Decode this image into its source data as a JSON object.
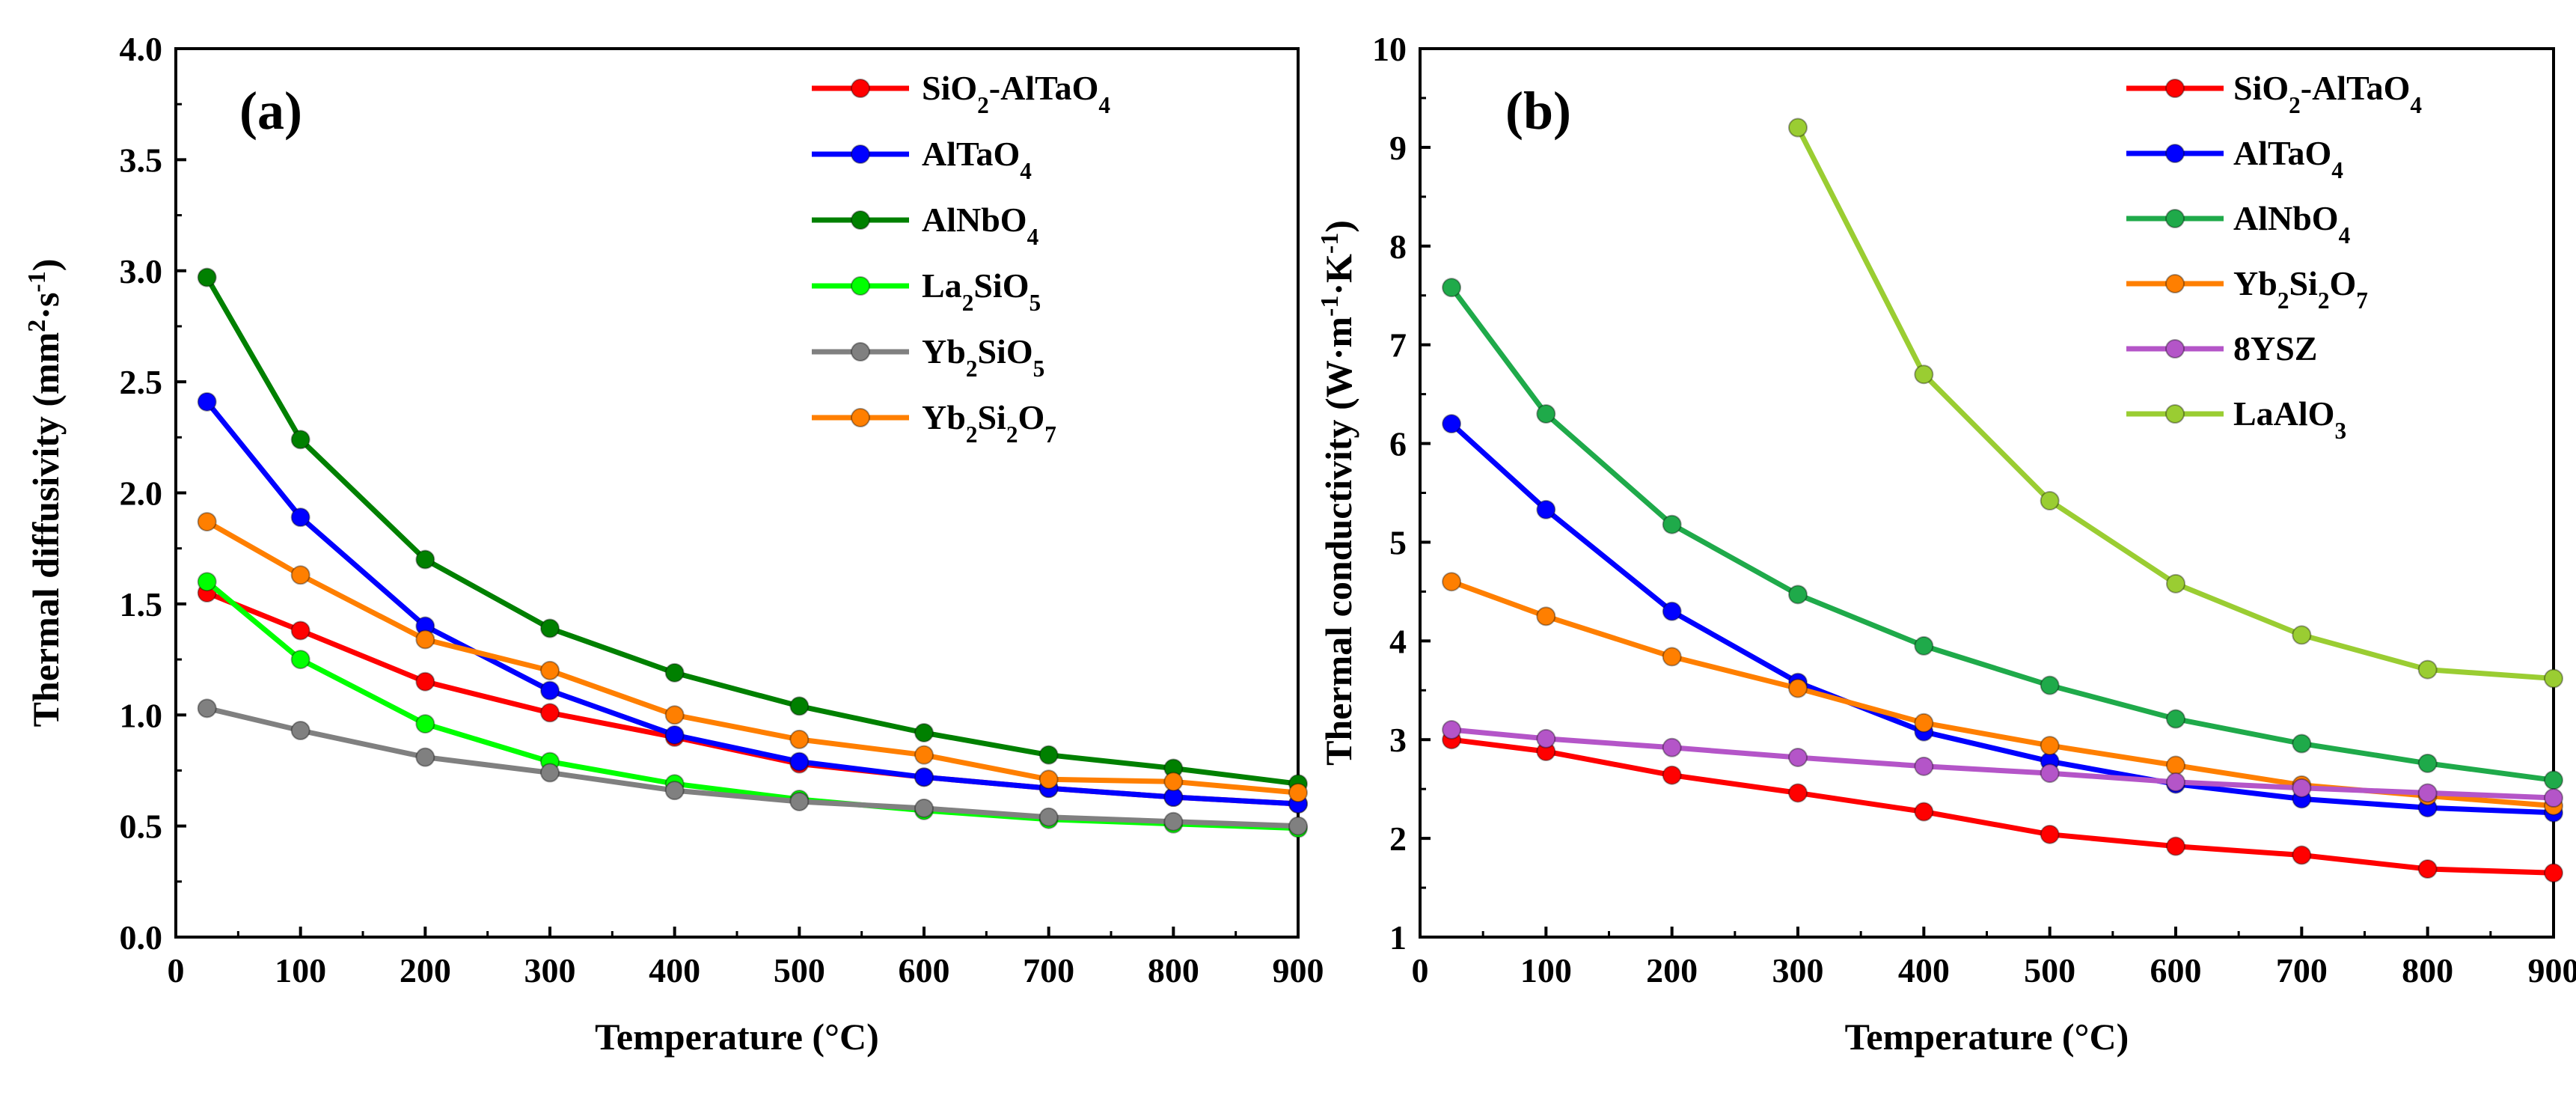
{
  "chart_data": [
    {
      "type": "line",
      "panel_label": "(a)",
      "xlabel": "Temperature (°C)",
      "ylabel_parts": [
        {
          "t": "Thermal diffusivity (mm"
        },
        {
          "t": "2",
          "sup": true
        },
        {
          "t": "·s"
        },
        {
          "t": "-1",
          "sup": true
        },
        {
          "t": ")"
        }
      ],
      "xlim": [
        0,
        900
      ],
      "ylim": [
        0.0,
        4.0
      ],
      "xticks": [
        0,
        100,
        200,
        300,
        400,
        500,
        600,
        700,
        800,
        900
      ],
      "xtick_labels": [
        "0",
        "100",
        "200",
        "300",
        "400",
        "500",
        "600",
        "700",
        "800",
        "900"
      ],
      "yticks": [
        0.0,
        0.5,
        1.0,
        1.5,
        2.0,
        2.5,
        3.0,
        3.5,
        4.0
      ],
      "ytick_labels": [
        "0.0",
        "0.5",
        "1.0",
        "1.5",
        "2.0",
        "2.5",
        "3.0",
        "3.5",
        "4.0"
      ],
      "legend_position": "top-right",
      "x": [
        25,
        100,
        200,
        300,
        400,
        500,
        600,
        700,
        800,
        900
      ],
      "series": [
        {
          "name": "SiO2-AlTaO4",
          "color": "#ff0000",
          "label_parts": [
            {
              "t": "SiO"
            },
            {
              "t": "2",
              "sub": true
            },
            {
              "t": "-AlTaO"
            },
            {
              "t": "4",
              "sub": true
            }
          ],
          "values": [
            1.55,
            1.38,
            1.15,
            1.01,
            0.9,
            0.78,
            0.72,
            0.67,
            0.63,
            0.6
          ]
        },
        {
          "name": "AlTaO4",
          "color": "#0000ff",
          "label_parts": [
            {
              "t": "AlTaO"
            },
            {
              "t": "4",
              "sub": true
            }
          ],
          "values": [
            2.41,
            1.89,
            1.4,
            1.11,
            0.91,
            0.79,
            0.72,
            0.67,
            0.63,
            0.6
          ]
        },
        {
          "name": "AlNbO4",
          "color": "#008000",
          "label_parts": [
            {
              "t": "AlNbO"
            },
            {
              "t": "4",
              "sub": true
            }
          ],
          "values": [
            2.97,
            2.24,
            1.7,
            1.39,
            1.19,
            1.04,
            0.92,
            0.82,
            0.76,
            0.69
          ]
        },
        {
          "name": "La2SiO5",
          "color": "#00ff00",
          "label_parts": [
            {
              "t": "La"
            },
            {
              "t": "2",
              "sub": true
            },
            {
              "t": "SiO"
            },
            {
              "t": "5",
              "sub": true
            }
          ],
          "values": [
            1.6,
            1.25,
            0.96,
            0.79,
            0.69,
            0.62,
            0.57,
            0.53,
            0.51,
            0.49
          ]
        },
        {
          "name": "Yb2SiO5",
          "color": "#808080",
          "label_parts": [
            {
              "t": "Yb"
            },
            {
              "t": "2",
              "sub": true
            },
            {
              "t": "SiO"
            },
            {
              "t": "5",
              "sub": true
            }
          ],
          "values": [
            1.03,
            0.93,
            0.81,
            0.74,
            0.66,
            0.61,
            0.58,
            0.54,
            0.52,
            0.5
          ]
        },
        {
          "name": "Yb2Si2O7",
          "color": "#ff7f00",
          "label_parts": [
            {
              "t": "Yb"
            },
            {
              "t": "2",
              "sub": true
            },
            {
              "t": "Si"
            },
            {
              "t": "2",
              "sub": true
            },
            {
              "t": "O"
            },
            {
              "t": "7",
              "sub": true
            }
          ],
          "values": [
            1.87,
            1.63,
            1.34,
            1.2,
            1.0,
            0.89,
            0.82,
            0.71,
            0.7,
            0.65
          ]
        }
      ]
    },
    {
      "type": "line",
      "panel_label": "(b)",
      "xlabel": "Temperature (°C)",
      "ylabel_parts": [
        {
          "t": "Thermal conductivity (W·m"
        },
        {
          "t": "-1",
          "sup": true
        },
        {
          "t": "·K"
        },
        {
          "t": "-1",
          "sup": true
        },
        {
          "t": ")"
        }
      ],
      "xlim": [
        0,
        900
      ],
      "ylim": [
        1,
        10
      ],
      "xticks": [
        0,
        100,
        200,
        300,
        400,
        500,
        600,
        700,
        800,
        900
      ],
      "xtick_labels": [
        "0",
        "100",
        "200",
        "300",
        "400",
        "500",
        "600",
        "700",
        "800",
        "900"
      ],
      "yticks": [
        1,
        2,
        3,
        4,
        5,
        6,
        7,
        8,
        9,
        10
      ],
      "ytick_labels": [
        "1",
        "2",
        "3",
        "4",
        "5",
        "6",
        "7",
        "8",
        "9",
        "10"
      ],
      "legend_position": "top-right",
      "x": [
        25,
        100,
        200,
        300,
        400,
        500,
        600,
        700,
        800,
        900
      ],
      "series": [
        {
          "name": "SiO2-AlTaO4",
          "color": "#ff0000",
          "label_parts": [
            {
              "t": "SiO"
            },
            {
              "t": "2",
              "sub": true
            },
            {
              "t": "-AlTaO"
            },
            {
              "t": "4",
              "sub": true
            }
          ],
          "values": [
            3.0,
            2.88,
            2.64,
            2.46,
            2.27,
            2.04,
            1.92,
            1.83,
            1.69,
            1.65
          ]
        },
        {
          "name": "AlTaO4",
          "color": "#0000ff",
          "label_parts": [
            {
              "t": "AlTaO"
            },
            {
              "t": "4",
              "sub": true
            }
          ],
          "values": [
            6.2,
            5.33,
            4.3,
            3.58,
            3.08,
            2.78,
            2.55,
            2.4,
            2.31,
            2.26
          ]
        },
        {
          "name": "AlNbO4",
          "color": "#1faa4a",
          "label_parts": [
            {
              "t": "AlNbO"
            },
            {
              "t": "4",
              "sub": true
            }
          ],
          "values": [
            7.58,
            6.3,
            5.18,
            4.47,
            3.95,
            3.55,
            3.21,
            2.96,
            2.76,
            2.59
          ]
        },
        {
          "name": "Yb2Si2O7",
          "color": "#ff7f00",
          "label_parts": [
            {
              "t": "Yb"
            },
            {
              "t": "2",
              "sub": true
            },
            {
              "t": "Si"
            },
            {
              "t": "2",
              "sub": true
            },
            {
              "t": "O"
            },
            {
              "t": "7",
              "sub": true
            }
          ],
          "values": [
            4.6,
            4.25,
            3.84,
            3.52,
            3.17,
            2.94,
            2.74,
            2.54,
            2.43,
            2.33
          ]
        },
        {
          "name": "8YSZ",
          "color": "#b455c8",
          "label_parts": [
            {
              "t": "8YSZ"
            }
          ],
          "values": [
            3.1,
            3.01,
            2.92,
            2.82,
            2.73,
            2.66,
            2.57,
            2.51,
            2.46,
            2.41
          ]
        },
        {
          "name": "LaAlO3",
          "color": "#9acd32",
          "label_parts": [
            {
              "t": "LaAlO"
            },
            {
              "t": "3",
              "sub": true
            }
          ],
          "x": [
            300,
            400,
            500,
            600,
            700,
            800,
            900
          ],
          "values": [
            9.2,
            6.7,
            5.42,
            4.58,
            4.06,
            3.71,
            3.62
          ]
        }
      ]
    }
  ]
}
